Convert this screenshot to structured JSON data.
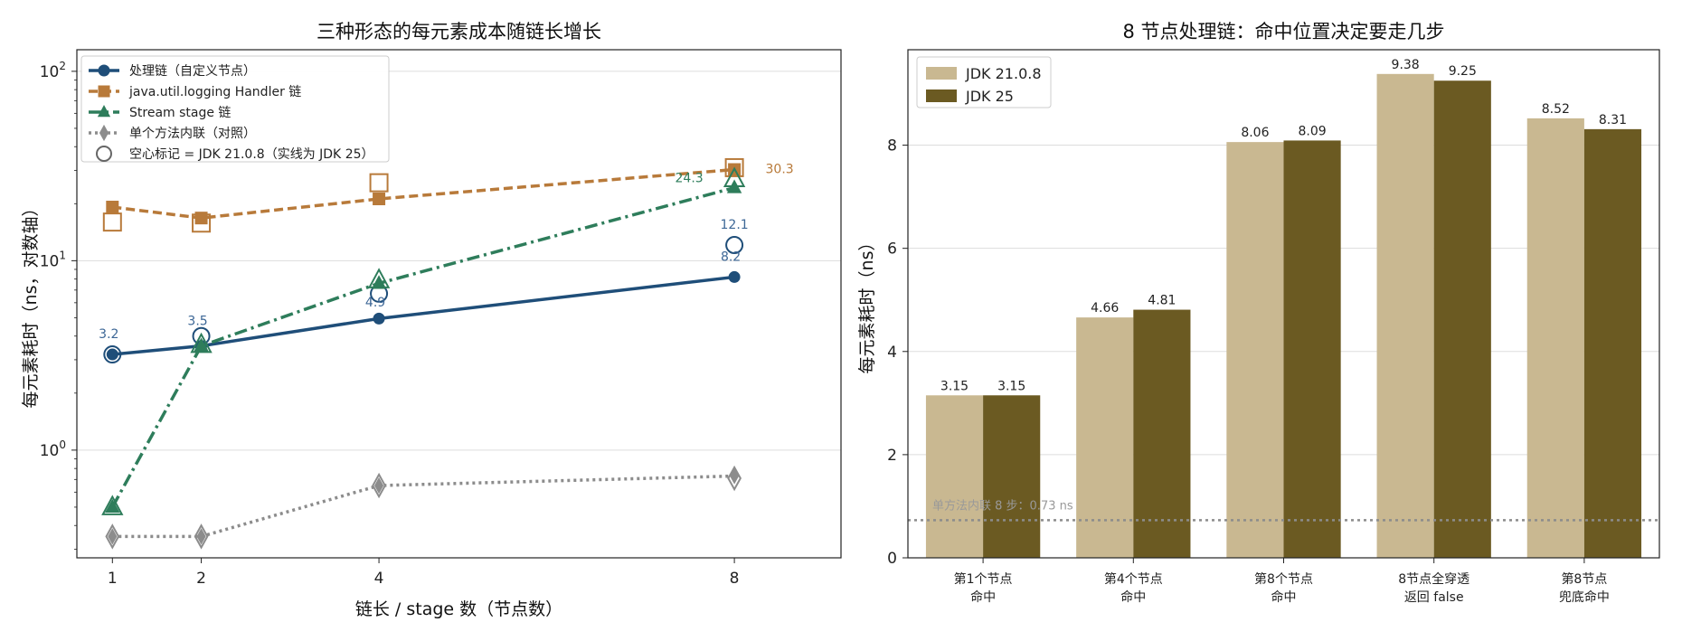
{
  "chart_data": [
    {
      "type": "line",
      "title": "三种形态的每元素成本随链长增长",
      "xlabel": "链长 / stage 数（节点数）",
      "ylabel": "每元素耗时（ns，对数轴）",
      "x": [
        1,
        2,
        4,
        8
      ],
      "xticks": [
        "1",
        "2",
        "4",
        "8"
      ],
      "xlim": [
        0.6,
        9.2
      ],
      "yscale": "log",
      "ylim": [
        0.27,
        130
      ],
      "yticks": [
        {
          "v": 1,
          "base": "10",
          "exp": "0"
        },
        {
          "v": 10,
          "base": "10",
          "exp": "1"
        },
        {
          "v": 100,
          "base": "10",
          "exp": "2"
        }
      ],
      "grid": "y",
      "legend_position": "top-left",
      "series": [
        {
          "name": "处理链（自定义节点）",
          "color": "#1f4e79",
          "marker": "circle",
          "dash": "solid",
          "jdk25": [
            3.2,
            3.55,
            4.95,
            8.2
          ],
          "jdk21": [
            3.2,
            4.0,
            6.7,
            12.1
          ]
        },
        {
          "name": "java.util.logging Handler 链",
          "color": "#b87a3a",
          "marker": "square",
          "dash": "dashed",
          "jdk25": [
            19.2,
            16.8,
            21.2,
            30.3
          ],
          "jdk21": [
            16.0,
            15.8,
            25.8,
            31.0
          ]
        },
        {
          "name": "Stream stage 链",
          "color": "#2e7d5b",
          "marker": "triangle",
          "dash": "dashdot",
          "jdk25": [
            0.5,
            3.55,
            7.6,
            24.3
          ],
          "jdk21": [
            0.5,
            3.6,
            7.9,
            27.0
          ]
        },
        {
          "name": "单个方法内联（对照）",
          "color": "#8c8c8c",
          "marker": "diamond",
          "dash": "dotted",
          "jdk25": [
            0.35,
            0.35,
            0.65,
            0.73
          ],
          "jdk21": [
            0.35,
            0.35,
            0.65,
            0.71
          ]
        }
      ],
      "hollow_legend": "空心标记 = JDK 21.0.8（实线为 JDK 25）",
      "annotations": [
        {
          "text": "3.2",
          "x": 1,
          "y": 3.2,
          "color": "#3d6796"
        },
        {
          "text": "3.5",
          "x": 2,
          "y": 4.0,
          "color": "#3d6796"
        },
        {
          "text": "4.9",
          "x": 4,
          "y": 6.7,
          "color": "#3d6796"
        },
        {
          "text": "8.2",
          "x": 8,
          "y": 8.2,
          "color": "#3d6796"
        },
        {
          "text": "12.1",
          "x": 8,
          "y": 12.1,
          "color": "#3d6796"
        },
        {
          "text": "24.3",
          "x": 8,
          "y": 24.3,
          "color": "#2e7d5b"
        },
        {
          "text": "30.3",
          "x": 8,
          "y": 30.3,
          "color": "#b87a3a"
        }
      ]
    },
    {
      "type": "bar",
      "title": "8 节点处理链：命中位置决定要走几步",
      "ylabel": "每元素耗时（ns）",
      "categories": [
        [
          "第1个节点",
          "命中"
        ],
        [
          "第4个节点",
          "命中"
        ],
        [
          "第8个节点",
          "命中"
        ],
        [
          "8节点全穿透",
          "返回 false"
        ],
        [
          "第8节点",
          "兜底命中"
        ]
      ],
      "ylim": [
        0,
        9.85
      ],
      "yticks": [
        0,
        2,
        4,
        6,
        8
      ],
      "grid": "y",
      "legend_position": "top-left",
      "series": [
        {
          "name": "JDK 21.0.8",
          "color": "#c9b891",
          "values": [
            3.15,
            4.66,
            8.06,
            9.38,
            8.52
          ],
          "labels": [
            "3.15",
            "4.66",
            "8.06",
            "9.38",
            "8.52"
          ]
        },
        {
          "name": "JDK 25",
          "color": "#6b5a22",
          "values": [
            3.15,
            4.81,
            8.09,
            9.25,
            8.31
          ],
          "labels": [
            "3.15",
            "4.81",
            "8.09",
            "9.25",
            "8.31"
          ]
        }
      ],
      "reference_line": {
        "value": 0.73,
        "label": "单方法内联 8 步：0.73 ns",
        "color": "#8c8c8c"
      }
    }
  ]
}
